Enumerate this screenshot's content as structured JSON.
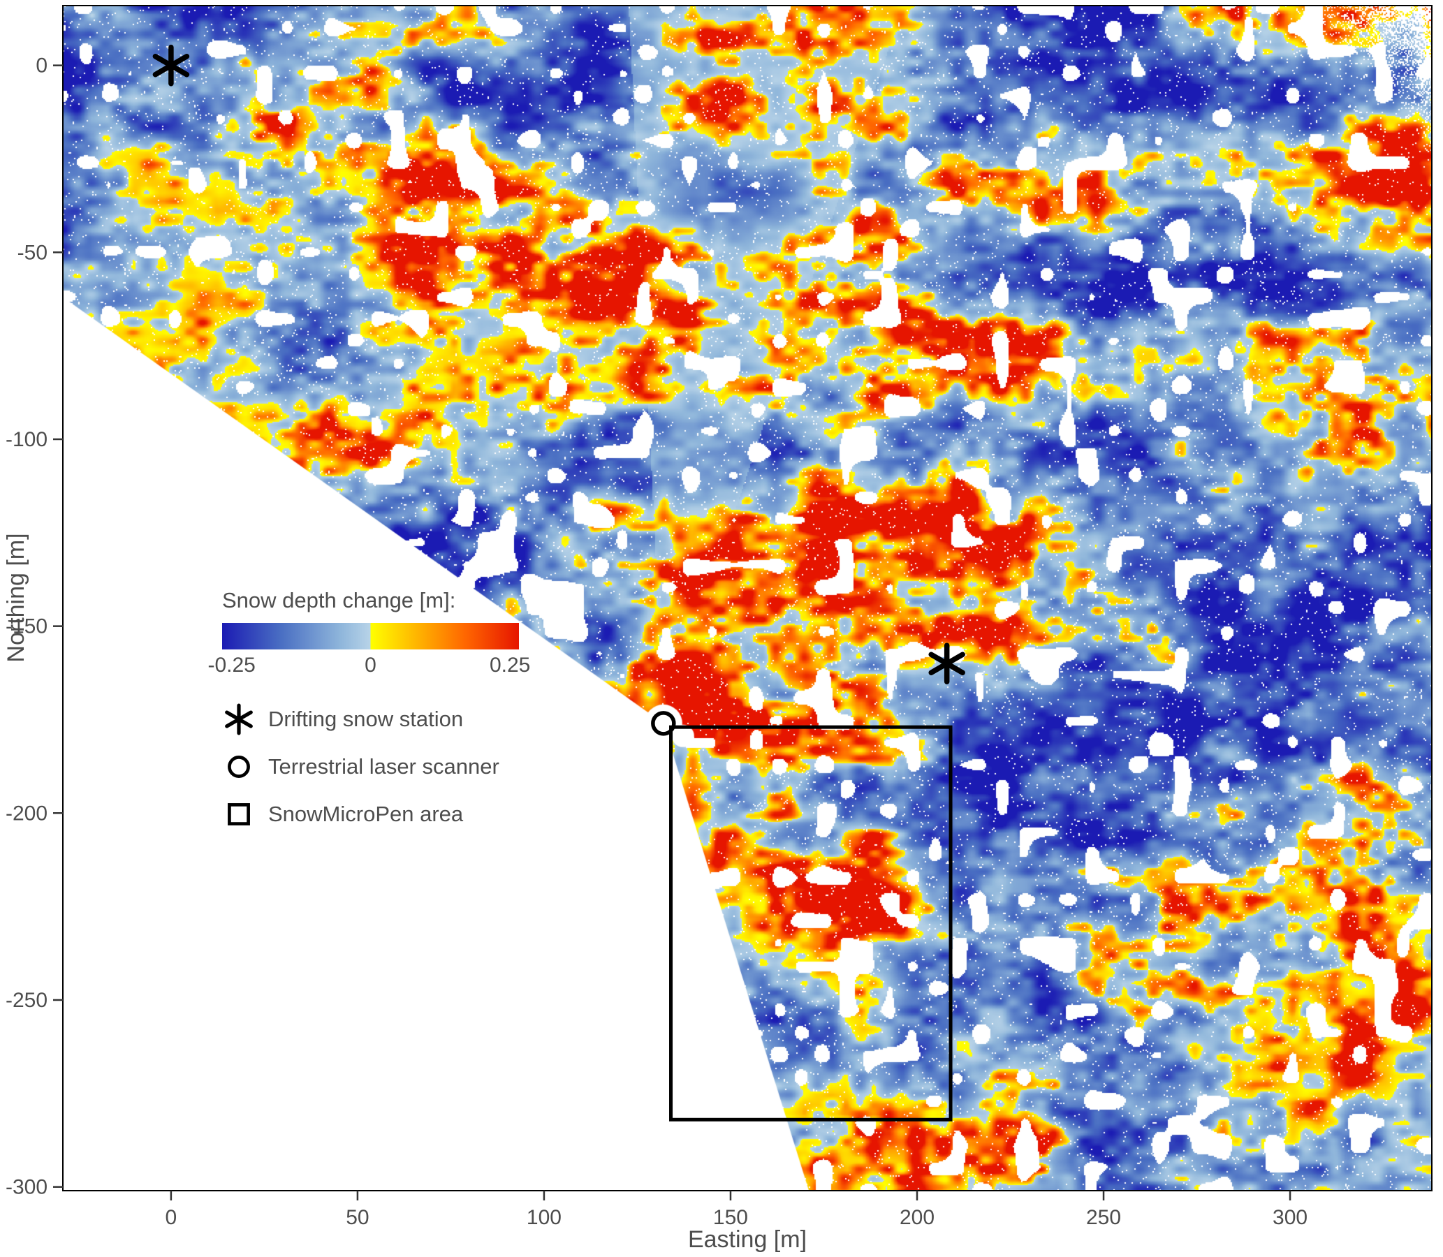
{
  "chart_data": {
    "type": "heatmap",
    "xlabel": "Easting [m]",
    "ylabel": "Northing [m]",
    "xlim": [
      -29,
      338
    ],
    "ylim": [
      -301,
      16
    ],
    "x_ticks": [
      0,
      50,
      100,
      150,
      200,
      250,
      300
    ],
    "y_ticks": [
      0,
      -50,
      -100,
      -150,
      -200,
      -250,
      -300
    ],
    "grid": false,
    "colorbar": {
      "title": "Snow depth change [m]:",
      "min": -0.25,
      "max": 0.25,
      "tick_labels": [
        "-0.25",
        "0",
        "0.25"
      ],
      "stops": [
        {
          "v": -0.25,
          "c": "#1b1bb3"
        },
        {
          "v": -0.15,
          "c": "#4a6fc3"
        },
        {
          "v": -0.05,
          "c": "#8fb6db"
        },
        {
          "v": -0.0005,
          "c": "#b7d3e8"
        },
        {
          "v": 0.0005,
          "c": "#ffff00"
        },
        {
          "v": 0.08,
          "c": "#ffb300"
        },
        {
          "v": 0.16,
          "c": "#ff6600"
        },
        {
          "v": 0.25,
          "c": "#e61500"
        }
      ]
    },
    "legend_items": [
      {
        "marker": "asterisk",
        "label": "Drifting snow station"
      },
      {
        "marker": "circle",
        "label": "Terrestrial laser scanner"
      },
      {
        "marker": "square",
        "label": "SnowMicroPen area"
      }
    ],
    "markers": {
      "drifting_snow_stations": [
        {
          "x": 0,
          "y": 0
        },
        {
          "x": 208,
          "y": -160
        }
      ],
      "terrestrial_laser_scanner": {
        "x": 132,
        "y": -176
      },
      "snowmicropen_area": {
        "x_min": 134,
        "x_max": 209,
        "y_min": -282,
        "y_max": -177
      }
    },
    "scan_center": {
      "x": 132,
      "y": -176
    },
    "scan_range_m": 255,
    "no_data_wedge": [
      [
        -29,
        -62
      ],
      [
        132,
        -176
      ],
      [
        171,
        -301
      ],
      [
        -29,
        -301
      ]
    ]
  }
}
